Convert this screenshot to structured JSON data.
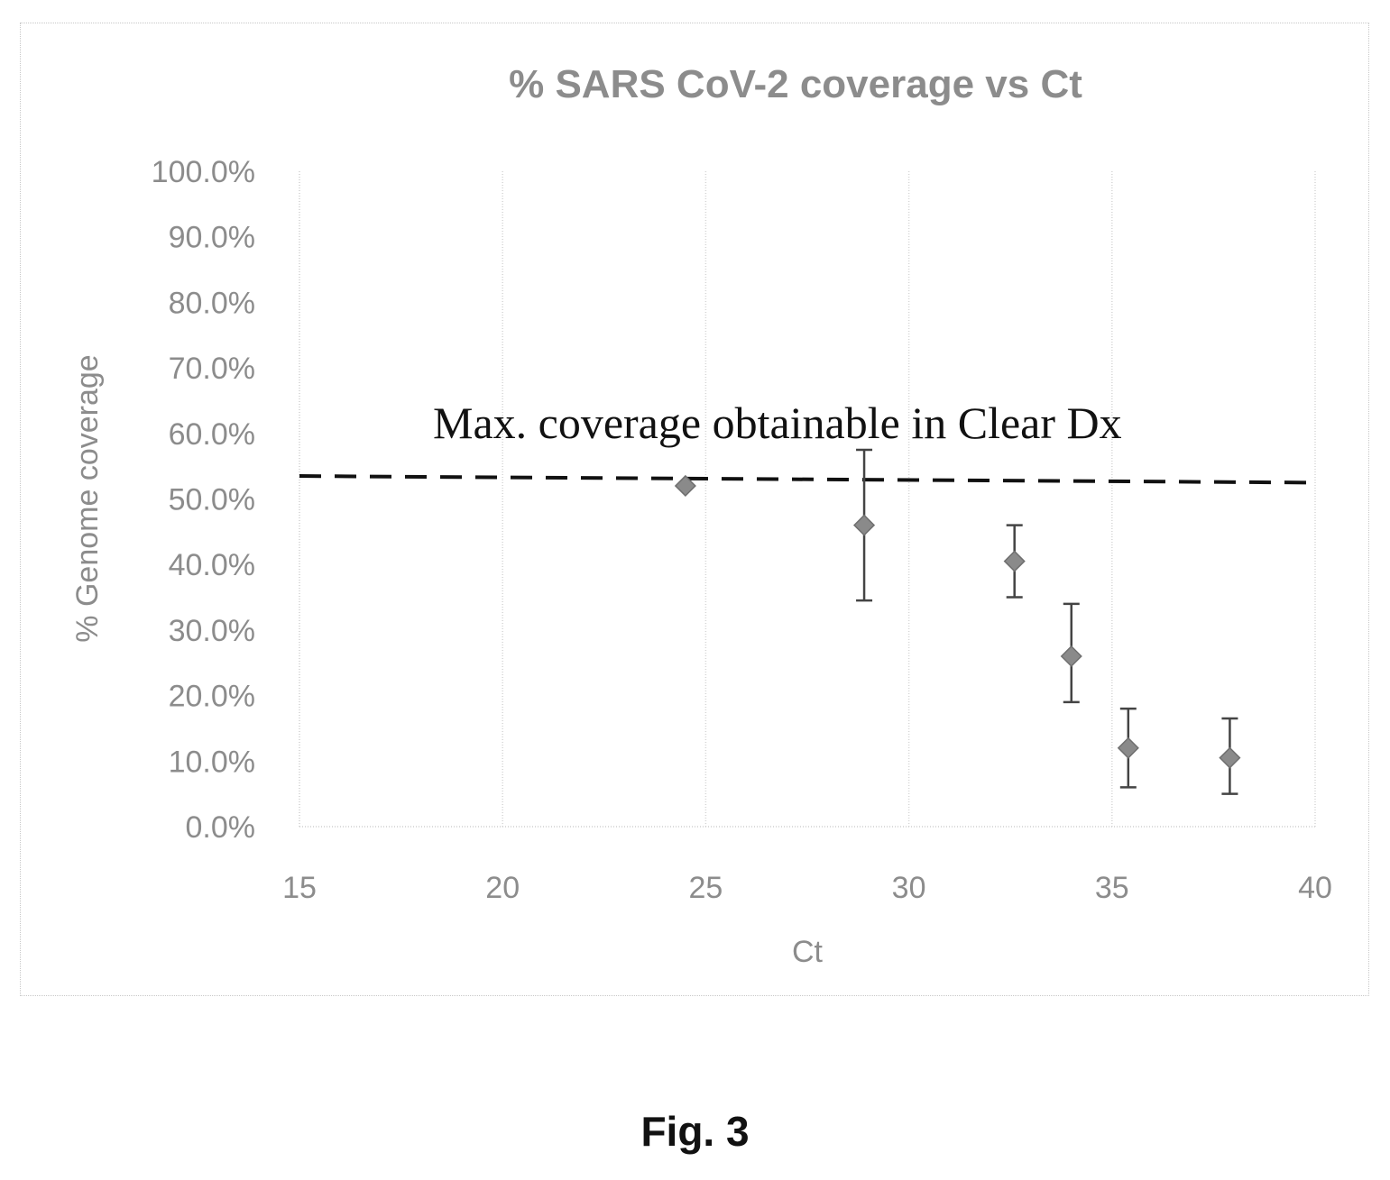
{
  "chart_data": {
    "type": "scatter",
    "title": "% SARS CoV-2 coverage vs Ct",
    "xlabel": "Ct",
    "ylabel": "% Genome coverage",
    "xlim": [
      15,
      40
    ],
    "ylim": [
      0,
      1
    ],
    "x_ticks": [
      "15",
      "20",
      "25",
      "30",
      "35",
      "40"
    ],
    "y_ticks": [
      "0.0%",
      "10.0%",
      "20.0%",
      "30.0%",
      "40.0%",
      "50.0%",
      "60.0%",
      "70.0%",
      "80.0%",
      "90.0%",
      "100.0%"
    ],
    "grid": "vertical",
    "series": [
      {
        "marker": "diamond",
        "color": "#8a8a8a",
        "points": [
          {
            "x": 24.5,
            "y": 0.52,
            "err_low": 0.52,
            "err_high": 0.52
          },
          {
            "x": 28.9,
            "y": 0.46,
            "err_low": 0.345,
            "err_high": 0.575
          },
          {
            "x": 32.6,
            "y": 0.405,
            "err_low": 0.35,
            "err_high": 0.46
          },
          {
            "x": 34.0,
            "y": 0.26,
            "err_low": 0.19,
            "err_high": 0.34
          },
          {
            "x": 35.4,
            "y": 0.12,
            "err_low": 0.06,
            "err_high": 0.18
          },
          {
            "x": 37.9,
            "y": 0.105,
            "err_low": 0.05,
            "err_high": 0.165
          }
        ]
      }
    ],
    "reference_line": {
      "style": "dashed",
      "color": "#111111",
      "y_start": 0.535,
      "y_end": 0.525,
      "label": "Max. coverage obtainable in Clear Dx"
    }
  },
  "caption": "Fig. 3"
}
